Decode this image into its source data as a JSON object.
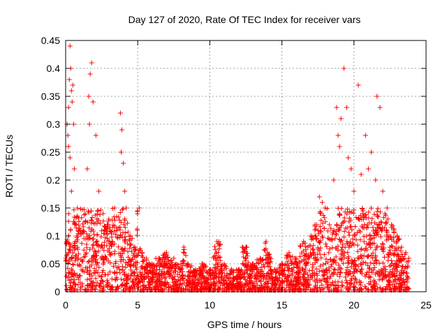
{
  "chart_data": {
    "type": "scatter",
    "title": "Day 127 of 2020, Rate Of TEC Index for receiver vars",
    "xlabel": "GPS time / hours",
    "ylabel": "ROTI / TECUs",
    "xlim": [
      0,
      25
    ],
    "ylim": [
      0,
      0.45
    ],
    "xticks": [
      0,
      5,
      10,
      15,
      20,
      25
    ],
    "xtick_labels": [
      "0",
      "5",
      "10",
      "15",
      "20",
      "25"
    ],
    "yticks": [
      0,
      0.05,
      0.1,
      0.15,
      0.2,
      0.25,
      0.3,
      0.35,
      0.4,
      0.45
    ],
    "ytick_labels": [
      "0",
      "0.05",
      "0.1",
      "0.15",
      "0.2",
      "0.25",
      "0.3",
      "0.35",
      "0.4",
      "0.45"
    ],
    "grid": true,
    "marker": "+",
    "color": "#ff0000",
    "series": [
      {
        "name": "ROTI",
        "x": [
          0.1,
          0.15,
          0.2,
          0.25,
          0.3,
          0.35,
          0.4,
          0.45,
          0.5,
          0.55,
          0.6,
          0.2,
          0.3,
          0.4,
          1.5,
          1.7,
          1.8,
          1.6,
          1.65,
          1.9,
          2.1,
          2.3,
          2.6,
          3.0,
          3.4,
          3.8,
          3.9,
          4.0,
          4.1,
          4.2,
          3.85,
          4.05,
          4.5,
          4.8,
          5.1,
          5.3,
          5.6,
          6.0,
          6.5,
          7.0,
          7.5,
          8.0,
          8.2,
          8.5,
          9.0,
          9.5,
          10.0,
          10.5,
          11.0,
          11.5,
          12.0,
          12.5,
          13.0,
          13.5,
          13.9,
          14.0,
          14.5,
          15.0,
          15.5,
          16.0,
          16.5,
          16.8,
          17.0,
          17.3,
          17.6,
          17.8,
          18.0,
          18.3,
          18.6,
          18.8,
          18.9,
          19.0,
          19.1,
          19.3,
          19.5,
          19.6,
          19.8,
          20.0,
          20.3,
          20.5,
          20.8,
          21.0,
          21.2,
          21.5,
          21.6,
          21.8,
          22.0,
          22.3,
          22.6,
          23.0,
          23.3,
          23.6,
          23.8
        ],
        "y": [
          0.3,
          0.28,
          0.33,
          0.38,
          0.44,
          0.4,
          0.36,
          0.34,
          0.37,
          0.3,
          0.22,
          0.26,
          0.24,
          0.18,
          0.22,
          0.39,
          0.41,
          0.35,
          0.3,
          0.34,
          0.28,
          0.18,
          0.14,
          0.13,
          0.15,
          0.32,
          0.29,
          0.23,
          0.18,
          0.15,
          0.25,
          0.12,
          0.1,
          0.08,
          0.15,
          0.07,
          0.06,
          0.05,
          0.06,
          0.07,
          0.06,
          0.05,
          0.08,
          0.05,
          0.04,
          0.05,
          0.04,
          0.09,
          0.05,
          0.04,
          0.04,
          0.08,
          0.05,
          0.06,
          0.09,
          0.07,
          0.04,
          0.05,
          0.07,
          0.06,
          0.09,
          0.08,
          0.1,
          0.12,
          0.17,
          0.16,
          0.15,
          0.12,
          0.2,
          0.33,
          0.28,
          0.26,
          0.31,
          0.4,
          0.33,
          0.24,
          0.22,
          0.18,
          0.37,
          0.21,
          0.28,
          0.22,
          0.25,
          0.2,
          0.35,
          0.33,
          0.18,
          0.15,
          0.12,
          0.1,
          0.08,
          0.07,
          0.06
        ]
      }
    ]
  }
}
